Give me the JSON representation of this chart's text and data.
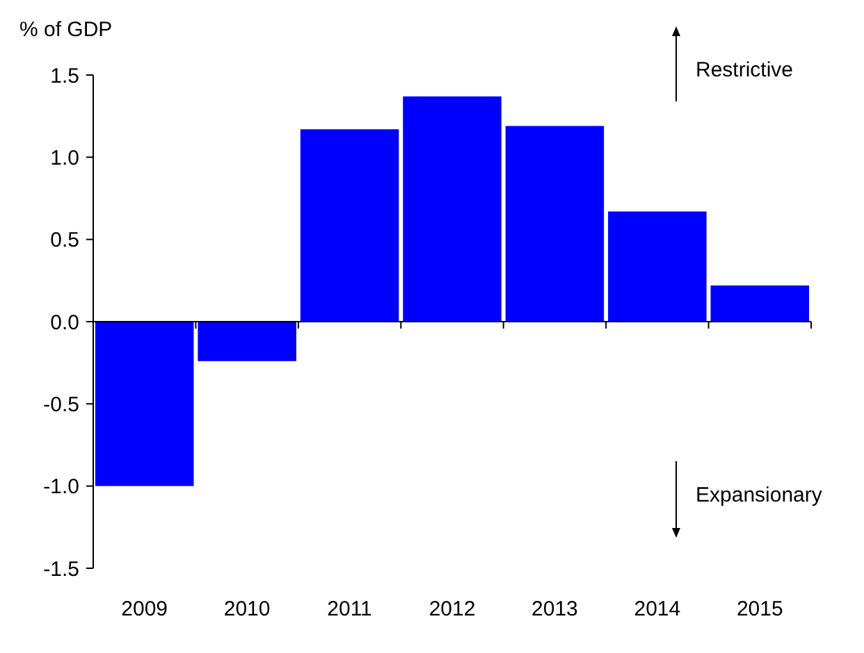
{
  "chart_data": {
    "type": "bar",
    "ylabel": "% of GDP",
    "categories": [
      "2009",
      "2010",
      "2011",
      "2012",
      "2013",
      "2014",
      "2015"
    ],
    "values": [
      -1.0,
      -0.24,
      1.17,
      1.37,
      1.19,
      0.67,
      0.22
    ],
    "color": "#0000ff",
    "ylim": [
      -1.5,
      1.5
    ],
    "yticks": [
      {
        "value": -1.5,
        "label": "-1.5"
      },
      {
        "value": -1,
        "label": "-1.0"
      },
      {
        "value": -0.5,
        "label": "-0.5"
      },
      {
        "value": 0,
        "label": "0.0"
      },
      {
        "value": 0.5,
        "label": "0.5"
      },
      {
        "value": 1,
        "label": "1.0"
      },
      {
        "value": 1.5,
        "label": "1.5"
      }
    ],
    "annotations": [
      "Restrictive",
      "Expansionary"
    ]
  }
}
